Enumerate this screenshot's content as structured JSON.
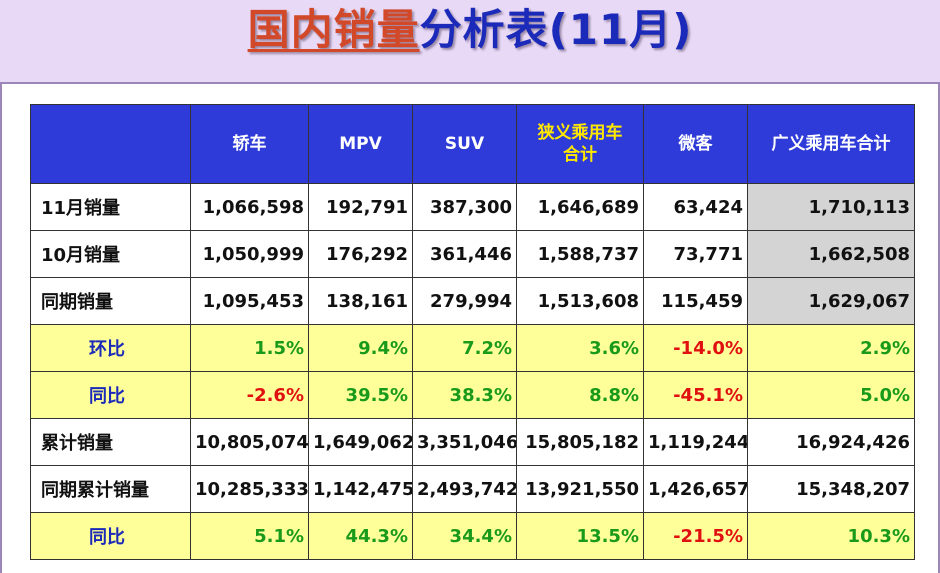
{
  "title": {
    "part1": "国内销量",
    "part2": "分析表(11月)"
  },
  "table": {
    "headers": [
      "",
      "轿车",
      "MPV",
      "SUV",
      "狭义乘用车合计",
      "微客",
      "广义乘用车合计"
    ],
    "header_narrow_line1": "狭义乘用车",
    "header_narrow_line2": "合计",
    "rows": [
      {
        "label": "11月销量",
        "type": "value",
        "cells": [
          "1,066,598",
          "192,791",
          "387,300",
          "1,646,689",
          "63,424",
          "1,710,113"
        ]
      },
      {
        "label": "10月销量",
        "type": "value",
        "cells": [
          "1,050,999",
          "176,292",
          "361,446",
          "1,588,737",
          "73,771",
          "1,662,508"
        ]
      },
      {
        "label": "同期销量",
        "type": "value",
        "cells": [
          "1,095,453",
          "138,161",
          "279,994",
          "1,513,608",
          "115,459",
          "1,629,067"
        ]
      },
      {
        "label": "环比",
        "type": "pct",
        "cells": [
          "1.5%",
          "9.4%",
          "7.2%",
          "3.6%",
          "-14.0%",
          "2.9%"
        ]
      },
      {
        "label": "同比",
        "type": "pct",
        "cells": [
          "-2.6%",
          "39.5%",
          "38.3%",
          "8.8%",
          "-45.1%",
          "5.0%"
        ]
      },
      {
        "label": "累计销量",
        "type": "value",
        "cells": [
          "10,805,074",
          "1,649,062",
          "3,351,046",
          "15,805,182",
          "1,119,244",
          "16,924,426"
        ]
      },
      {
        "label": "同期累计销量",
        "type": "value",
        "cells": [
          "10,285,333",
          "1,142,475",
          "2,493,742",
          "13,921,550",
          "1,426,657",
          "15,348,207"
        ]
      },
      {
        "label": "同比",
        "type": "pct",
        "cells": [
          "5.1%",
          "44.3%",
          "34.4%",
          "13.5%",
          "-21.5%",
          "10.3%"
        ]
      }
    ]
  },
  "colors": {
    "header_bg": "#2e3bd8",
    "header_text": "#ffffff",
    "header_highlight_text": "#ffe800",
    "pct_row_bg": "#ffff99",
    "positive": "#1a9a1a",
    "negative": "#e01010",
    "summary_col_bg": "#d4d4d4",
    "title_accent": "#d2492a",
    "title_main": "#1b2ab8"
  }
}
